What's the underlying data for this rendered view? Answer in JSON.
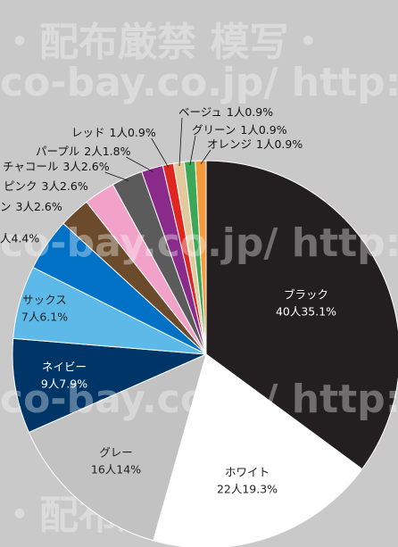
{
  "chart_data": {
    "type": "pie",
    "categories": [
      "ブラック",
      "ホワイト",
      "グレー",
      "ネイビー",
      "サックス",
      null,
      "ン",
      "ピンク",
      "チャコール",
      "パープル",
      "レッド",
      "ベージュ",
      "グリーン",
      "オレンジ"
    ],
    "values": [
      35.1,
      19.3,
      14,
      7.9,
      6.1,
      4.4,
      2.6,
      2.6,
      2.6,
      1.8,
      0.9,
      0.9,
      0.9,
      0.9
    ],
    "value_labels": [
      "40人35.1%",
      "22人19.3%",
      "16人14%",
      "9人7.9%",
      "7人6.1%",
      "人4.4%",
      "3人2.6%",
      "3人2.6%",
      "3人2.6%",
      "2人1.8%",
      "1人0.9%",
      "1人0.9%",
      "1人0.9%",
      "1人0.9%"
    ],
    "colors": [
      "#231f20",
      "#ffffff",
      "#c2c2c2",
      "#003667",
      "#5db9e8",
      "#0071c5",
      "#6b4b2c",
      "#f2a2c8",
      "#5b5b5b",
      "#8a2b8c",
      "#e0261f",
      "#e2c99c",
      "#3ca857",
      "#f39a3b"
    ],
    "watermarks": [
      "・配布厳禁 模写・",
      "co-bay.co.jp/ http://ww"
    ]
  }
}
